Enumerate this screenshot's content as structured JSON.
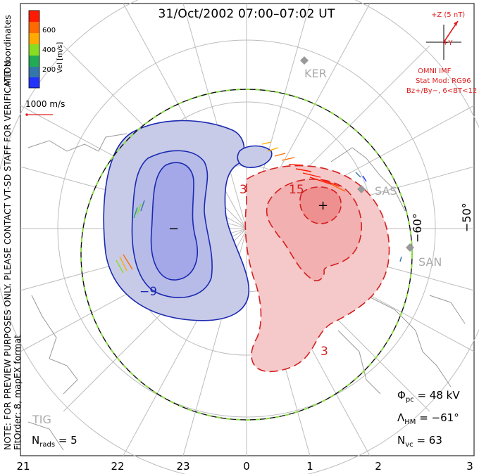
{
  "title": "31/Oct/2002 07:00–07:02 UT",
  "note_lines": [
    "NOTE: FOR PREVIEW PURPOSES ONLY. PLEASE CONTACT VT-SD STAFF FOR VERIFICATION.",
    "FitOrder: 8, mapEX format"
  ],
  "coordinates_label": "MLT coordinates",
  "colorbar": {
    "label": "Vel [m/s]",
    "ticks": [
      "600",
      "400",
      "200"
    ],
    "colors": [
      "#ff1a00",
      "#ff6a00",
      "#ffaa00",
      "#88dd22",
      "#22aa55",
      "#3377aa",
      "#2233ff"
    ]
  },
  "reference_vector": {
    "label": "1000 m/s",
    "color": "#e02020"
  },
  "imf": {
    "bz_label": "+Z (5 nT)",
    "by_label": "+Y",
    "source": "OMNI IMF",
    "model": "Stat Mod: RG96",
    "condition": "Bz+/By−, 6<BT<12",
    "color": "#e02020"
  },
  "stations": [
    "KER",
    "SAS",
    "SAN",
    "TIG"
  ],
  "latitude_labels": [
    "−60°",
    "−50°"
  ],
  "contour_labels": {
    "negative": [
      "−9"
    ],
    "positive": [
      "3",
      "15",
      "3"
    ],
    "min_marker": "−",
    "max_marker": "+"
  },
  "stats": {
    "phi_pc": {
      "symbol": "Φ",
      "sub": "pc",
      "value": "= 48 kV"
    },
    "lambda_hm": {
      "symbol": "Λ",
      "sub": "HM",
      "value": "= −61°"
    },
    "n_vc": {
      "symbol": "N",
      "sub": "vc",
      "value": "= 63"
    },
    "n_rads": {
      "symbol": "N",
      "sub": "rads",
      "value": "= 5"
    }
  },
  "mlt_ticks": [
    "21",
    "22",
    "23",
    "0",
    "1",
    "2",
    "3"
  ],
  "colors": {
    "negative_fill": "#c8cbe8",
    "negative_inner": "#a4a8e8",
    "positive_fill": "#f5c9c9",
    "positive_inner": "#ee9090",
    "negative_line": "#1b2ab0",
    "positive_line": "#d42020",
    "boundary": "#88dd44"
  }
}
